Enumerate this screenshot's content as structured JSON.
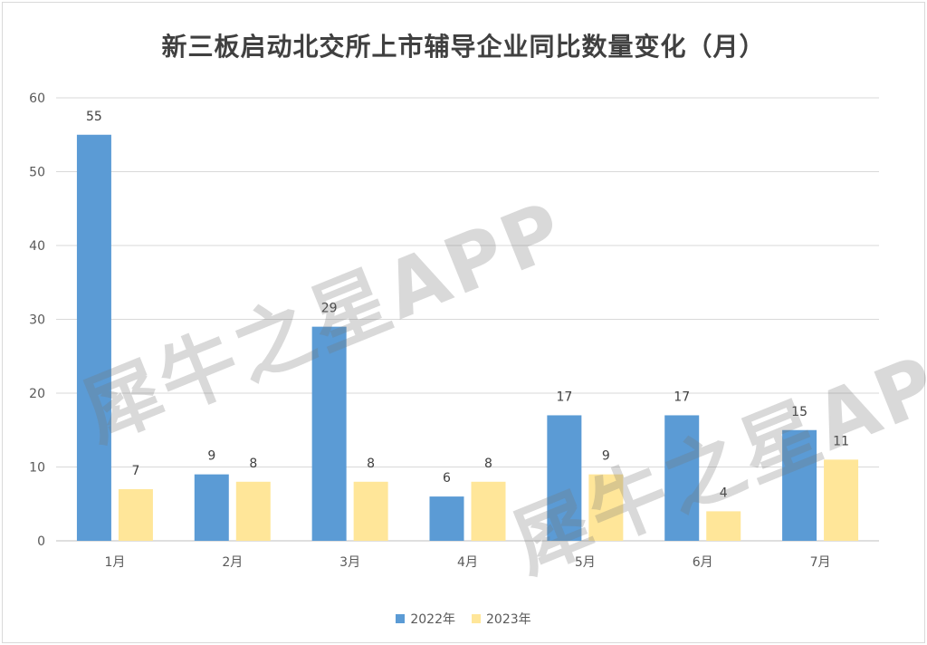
{
  "chart_data": {
    "type": "bar",
    "title": "新三板启动北交所上市辅导企业同比数量变化（月）",
    "categories": [
      "1月",
      "2月",
      "3月",
      "4月",
      "5月",
      "6月",
      "7月"
    ],
    "series": [
      {
        "name": "2022年",
        "values": [
          55,
          9,
          29,
          6,
          17,
          17,
          15
        ],
        "color": "#5b9bd5"
      },
      {
        "name": "2023年",
        "values": [
          7,
          8,
          8,
          8,
          9,
          4,
          11
        ],
        "color": "#ffe699"
      }
    ],
    "ylim": [
      0,
      60
    ],
    "yticks": [
      0,
      10,
      20,
      30,
      40,
      50,
      60
    ],
    "xlabel": "",
    "ylabel": "",
    "grid": true,
    "legend": "bottom"
  },
  "watermark": {
    "text": "犀牛之星APP"
  }
}
